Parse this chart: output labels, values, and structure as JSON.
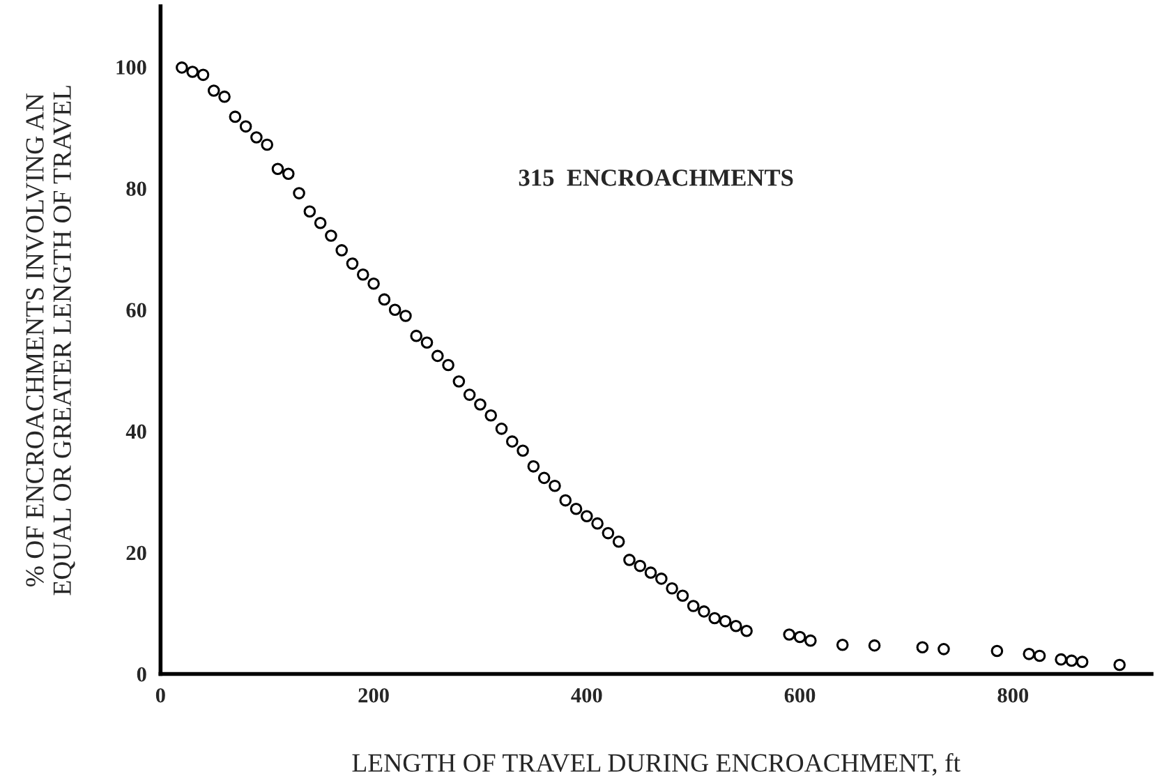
{
  "chart_data": {
    "type": "scatter",
    "xlabel": "LENGTH OF TRAVEL DURING ENCROACHMENT, ft",
    "ylabel": "% OF ENCROACHMENTS INVOLVING AN\nEQUAL OR GREATER LENGTH OF TRAVEL",
    "annotations": [
      "315  ENCROACHMENTS"
    ],
    "series": [
      {
        "color": "#000000",
        "x": [
          20,
          30,
          40,
          50,
          60,
          70,
          80,
          90,
          100,
          110,
          120,
          130,
          140,
          150,
          160,
          170,
          180,
          190,
          200,
          210,
          220,
          230,
          240,
          250,
          260,
          270,
          280,
          290,
          300,
          310,
          320,
          330,
          340,
          350,
          360,
          370,
          380,
          390,
          400,
          410,
          420,
          430,
          440,
          450,
          460,
          470,
          480,
          490,
          500,
          510,
          520,
          530,
          540,
          550,
          590,
          600,
          610,
          640,
          670,
          715,
          735,
          785,
          815,
          825,
          845,
          855,
          865,
          900
        ],
        "values": [
          99.9,
          99.2,
          98.7,
          96.1,
          95.1,
          91.8,
          90.2,
          88.4,
          87.2,
          83.2,
          82.4,
          79.2,
          76.2,
          74.3,
          72.2,
          69.8,
          67.6,
          65.8,
          64.3,
          61.7,
          60.0,
          59.0,
          55.7,
          54.6,
          52.4,
          50.9,
          48.2,
          46.0,
          44.4,
          42.6,
          40.4,
          38.3,
          36.8,
          34.2,
          32.3,
          31.0,
          28.6,
          27.2,
          26.0,
          24.8,
          23.2,
          21.8,
          18.8,
          17.8,
          16.7,
          15.7,
          14.1,
          12.9,
          11.2,
          10.3,
          9.2,
          8.7,
          7.9,
          7.1,
          6.5,
          6.1,
          5.5,
          4.8,
          4.7,
          4.4,
          4.1,
          3.8,
          3.3,
          3.0,
          2.4,
          2.2,
          2.0,
          1.5
        ]
      }
    ],
    "xlim": [
      0,
      930
    ],
    "ylim": [
      0,
      110
    ],
    "xticks": [
      0,
      200,
      400,
      600,
      800
    ],
    "yticks": [
      0,
      20,
      40,
      60,
      80,
      100
    ],
    "marker": "circle",
    "grid": false,
    "legend": false
  }
}
